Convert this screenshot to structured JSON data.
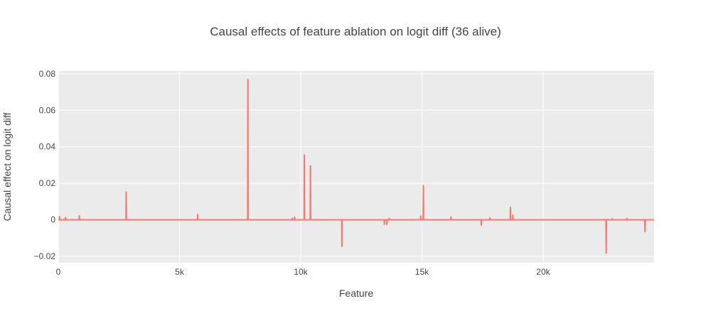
{
  "chart_data": {
    "type": "line",
    "title": "Causal effects of feature ablation on logit diff (36 alive)",
    "xlabel": "Feature",
    "ylabel": "Causal effect on logit diff",
    "xlim": [
      0,
      24576
    ],
    "ylim": [
      -0.0235,
      0.0815
    ],
    "x_ticks": [
      0,
      5000,
      10000,
      15000,
      20000
    ],
    "x_tick_labels": [
      "0",
      "5k",
      "10k",
      "15k",
      "20k"
    ],
    "y_ticks": [
      -0.02,
      0,
      0.02,
      0.04,
      0.06,
      0.08
    ],
    "y_tick_labels": [
      "−0.02",
      "0",
      "0.02",
      "0.04",
      "0.06",
      "0.08"
    ],
    "grid": true,
    "legend": "none",
    "line_color": "#f8766d",
    "plot_background": "#ebebeb",
    "series": [
      {
        "x": [
          50,
          300,
          870,
          2800,
          5750,
          7820,
          9650,
          9750,
          10150,
          10400,
          11700,
          13450,
          13550,
          13650,
          14950,
          15060,
          16200,
          17450,
          17800,
          18650,
          18750,
          22600,
          22850,
          23450,
          24200
        ],
        "values": [
          0.0018,
          0.0012,
          0.0022,
          0.0152,
          0.003,
          0.0768,
          0.0008,
          0.0014,
          0.0355,
          0.0295,
          -0.0145,
          -0.0025,
          -0.0025,
          0.0008,
          0.002,
          0.0187,
          0.0015,
          -0.003,
          0.001,
          0.0068,
          0.0025,
          -0.0183,
          0.0005,
          0.0008,
          -0.0065
        ]
      }
    ]
  }
}
